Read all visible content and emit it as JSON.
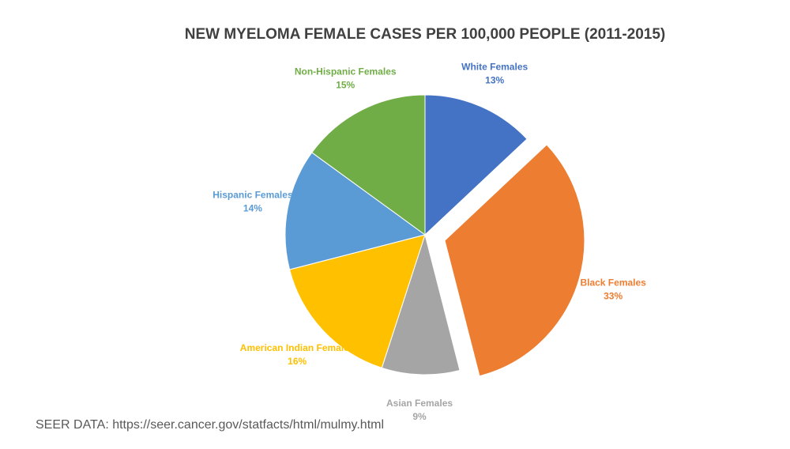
{
  "chart_data": {
    "type": "pie",
    "title": "NEW MYELOMA FEMALE CASES PER 100,000 PEOPLE (2011-2015)",
    "categories": [
      "White Females",
      "Black Females",
      "Asian Females",
      "American Indian Females",
      "Hispanic Females",
      "Non-Hispanic Females"
    ],
    "values": [
      13,
      33,
      9,
      16,
      14,
      15
    ],
    "value_labels": [
      "13%",
      "33%",
      "9%",
      "16%",
      "14%",
      "15%"
    ],
    "colors": [
      "#4472c4",
      "#ed7d31",
      "#a5a5a5",
      "#ffc000",
      "#5b9bd5",
      "#70ad47"
    ],
    "exploded": [
      false,
      true,
      false,
      false,
      false,
      false
    ],
    "source": "SEER DATA: https://seer.cancer.gov/statfacts/html/mulmy.html"
  }
}
